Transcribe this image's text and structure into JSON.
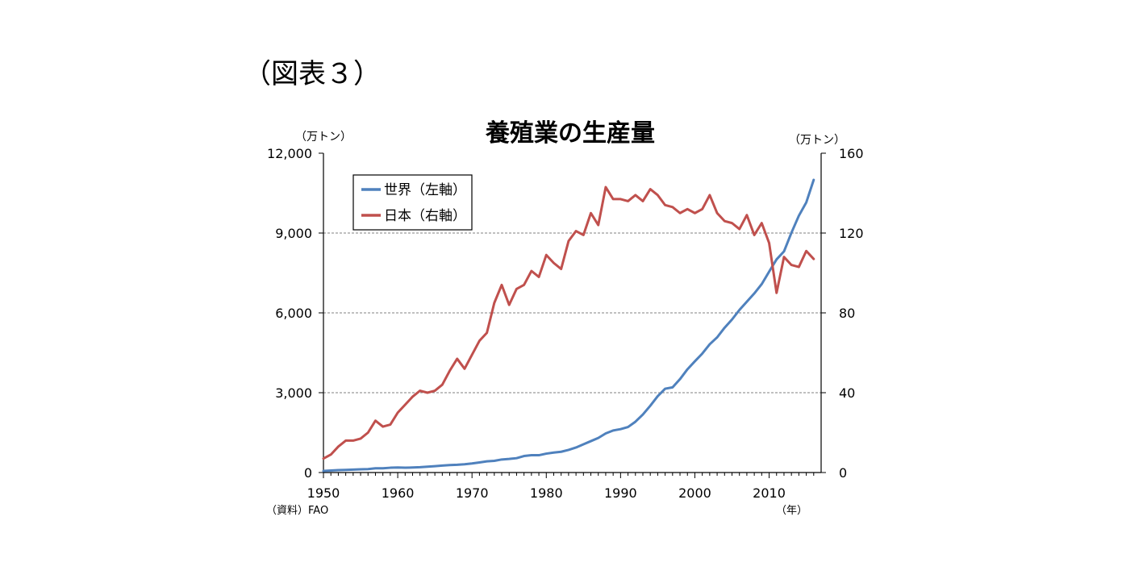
{
  "figure_label": "（図表３）",
  "source_note": "（資料）FAO",
  "legend": {
    "world": "世界（左軸）",
    "japan": "日本（右軸）"
  },
  "colors": {
    "world": "#4f81bd",
    "japan": "#c0504d",
    "grid": "#808080"
  },
  "chart_data": {
    "type": "line",
    "title": "養殖業の生産量",
    "y_left_label": "（万トン）",
    "y_right_label": "（万トン）",
    "x_unit_label": "（年）",
    "x_ticks": [
      "1950",
      "1960",
      "1970",
      "1980",
      "1990",
      "2000",
      "2010"
    ],
    "y_left_ticks": [
      "0",
      "3,000",
      "6,000",
      "9,000",
      "12,000"
    ],
    "y_right_ticks": [
      "0",
      "40",
      "80",
      "120",
      "160"
    ],
    "xlim": [
      1950,
      2017
    ],
    "y_left_lim": [
      0,
      12000
    ],
    "y_right_lim": [
      0,
      160
    ],
    "grid": "horizontal-dashed",
    "legend_position": "top-left",
    "x": [
      1950,
      1951,
      1952,
      1953,
      1954,
      1955,
      1956,
      1957,
      1958,
      1959,
      1960,
      1961,
      1962,
      1963,
      1964,
      1965,
      1966,
      1967,
      1968,
      1969,
      1970,
      1971,
      1972,
      1973,
      1974,
      1975,
      1976,
      1977,
      1978,
      1979,
      1980,
      1981,
      1982,
      1983,
      1984,
      1985,
      1986,
      1987,
      1988,
      1989,
      1990,
      1991,
      1992,
      1993,
      1994,
      1995,
      1996,
      1997,
      1998,
      1999,
      2000,
      2001,
      2002,
      2003,
      2004,
      2005,
      2006,
      2007,
      2008,
      2009,
      2010,
      2011,
      2012,
      2013,
      2014,
      2015,
      2016
    ],
    "series": [
      {
        "name": "世界（左軸）",
        "axis": "left",
        "values": [
          60,
          75,
          90,
          100,
          110,
          120,
          130,
          160,
          160,
          180,
          190,
          180,
          190,
          200,
          220,
          240,
          260,
          280,
          290,
          310,
          340,
          380,
          420,
          440,
          490,
          510,
          540,
          620,
          650,
          650,
          710,
          750,
          780,
          850,
          940,
          1060,
          1180,
          1300,
          1470,
          1580,
          1630,
          1710,
          1910,
          2180,
          2510,
          2870,
          3150,
          3200,
          3510,
          3880,
          4180,
          4470,
          4820,
          5080,
          5440,
          5750,
          6110,
          6420,
          6730,
          7080,
          7550,
          8010,
          8310,
          9010,
          9650,
          10150,
          11000
        ]
      },
      {
        "name": "日本（右軸）",
        "axis": "right",
        "values": [
          7,
          9,
          13,
          16,
          16,
          17,
          20,
          26,
          23,
          24,
          30,
          34,
          38,
          41,
          40,
          41,
          44,
          51,
          57,
          52,
          59,
          66,
          70,
          85,
          94,
          84,
          92,
          94,
          101,
          98,
          109,
          105,
          102,
          116,
          121,
          119,
          130,
          124,
          143,
          137,
          137,
          136,
          139,
          136,
          142,
          139,
          134,
          133,
          130,
          132,
          130,
          132,
          139,
          130,
          126,
          125,
          122,
          129,
          119,
          125,
          115,
          90,
          108,
          104,
          103,
          111,
          107
        ]
      }
    ]
  }
}
